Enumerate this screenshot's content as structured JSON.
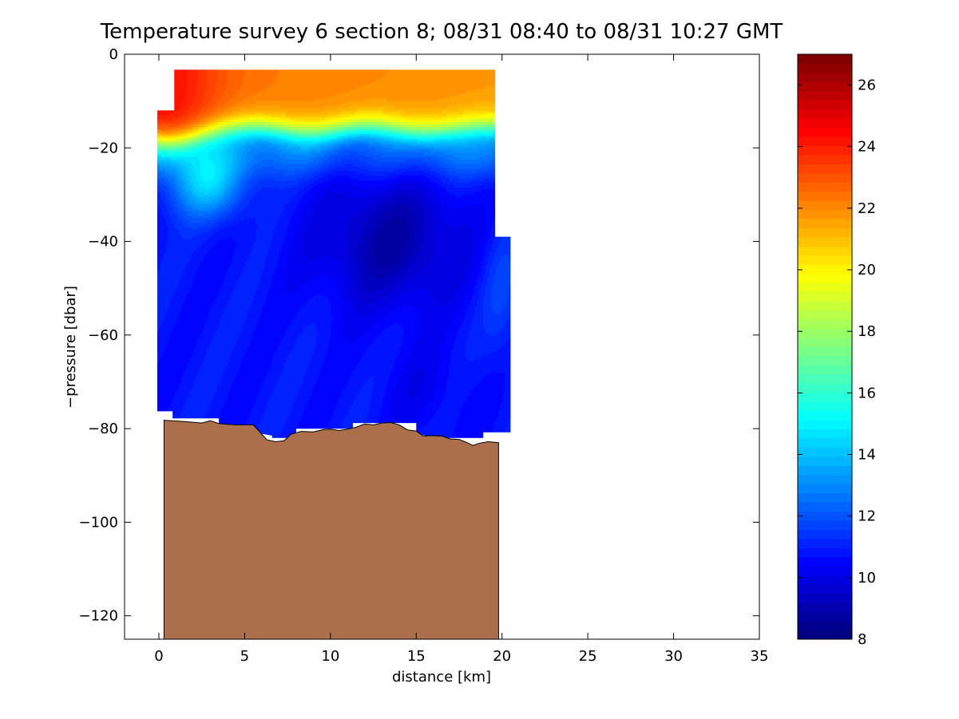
{
  "chart_data": {
    "type": "heatmap",
    "title": "Temperature survey 6 section 8; 08/31 08:40 to 08/31 10:27 GMT",
    "xlabel": "distance [km]",
    "ylabel": "−pressure [dbar]",
    "xlim": [
      -2,
      35
    ],
    "ylim": [
      -125,
      0
    ],
    "x_ticks": [
      0,
      5,
      10,
      15,
      20,
      25,
      30,
      35
    ],
    "y_ticks": [
      0,
      -20,
      -40,
      -60,
      -80,
      -100,
      -120
    ],
    "x_tick_labels": [
      "0",
      "5",
      "10",
      "15",
      "20",
      "25",
      "30",
      "35"
    ],
    "y_tick_labels": [
      "0",
      "−20",
      "−40",
      "−60",
      "−80",
      "−100",
      "−120"
    ],
    "colorbar": {
      "colormap": "jet",
      "range": [
        8,
        27
      ],
      "ticks": [
        8,
        10,
        12,
        14,
        16,
        18,
        20,
        22,
        24,
        26
      ],
      "tick_labels": [
        "8",
        "10",
        "12",
        "14",
        "16",
        "18",
        "20",
        "22",
        "24",
        "26"
      ]
    },
    "field": {
      "x_extent": [
        -0.1,
        20.5
      ],
      "surface_temperature_c": 22.5,
      "thermocline_depth_dbar": 15,
      "core_min_temperature_c": 8.8,
      "core_center_km": 13.5,
      "core_center_depth_dbar": 40,
      "deep_temperature_c": 10.8
    },
    "bathymetry": {
      "color": "#ab6f4b",
      "x": [
        0.3,
        1.5,
        2.5,
        3.0,
        3.5,
        4.0,
        4.5,
        5.5,
        5.9,
        6.3,
        6.8,
        7.3,
        7.7,
        8.3,
        9.0,
        9.6,
        10.0,
        10.5,
        11.0,
        11.5,
        12.0,
        12.5,
        13.0,
        13.5,
        14.0,
        14.5,
        15.0,
        15.4,
        15.9,
        16.5,
        17.0,
        17.5,
        17.9,
        18.3,
        18.7,
        19.2,
        19.8
      ],
      "depth": [
        -78.2,
        -78.5,
        -78.8,
        -78.3,
        -78.9,
        -79.1,
        -79.2,
        -79.2,
        -80.8,
        -82.4,
        -82.8,
        -82.6,
        -81.2,
        -80.6,
        -80.7,
        -80.2,
        -80.1,
        -80.4,
        -80.1,
        -79.7,
        -79.0,
        -79.2,
        -78.8,
        -78.7,
        -79.2,
        -80.3,
        -80.5,
        -81.6,
        -81.5,
        -81.6,
        -82.2,
        -82.3,
        -82.9,
        -83.6,
        -83.1,
        -82.8,
        -83.0
      ]
    }
  }
}
